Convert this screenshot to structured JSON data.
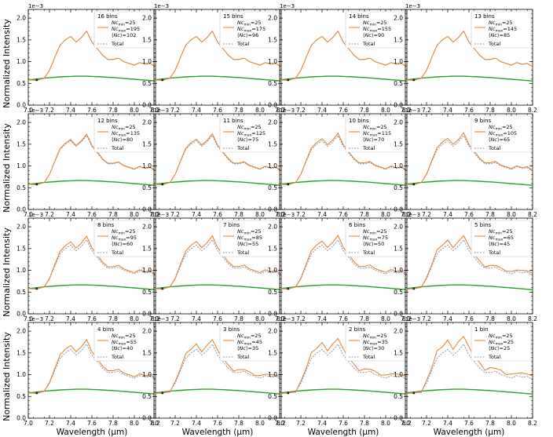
{
  "figure": {
    "ylabel": "Normalized Intensity",
    "xlabel": "Wavelength (μm)",
    "offset_label": "1e−3",
    "x_ticks": [
      "7.0",
      "7.2",
      "7.4",
      "7.6",
      "7.8",
      "8.0",
      "8.2"
    ],
    "y_ticks": [
      "0.0",
      "0.5",
      "1.0",
      "1.5",
      "2.0"
    ],
    "legend_total": "Total",
    "colors": {
      "orange": "#e08a3c",
      "total": "#7a7a9a",
      "green": "#2ca02c"
    }
  },
  "chart_data": [
    {
      "type": "line",
      "bins": "16 bins",
      "nc_min": "25",
      "nc_max": "195",
      "nc_mean": "102",
      "xlim": [
        7.0,
        8.2
      ],
      "ylim": [
        0,
        2.2
      ],
      "scale": "1e-3",
      "amplitude": 1.0
    },
    {
      "type": "line",
      "bins": "15 bins",
      "nc_min": "25",
      "nc_max": "175",
      "nc_mean": "96",
      "xlim": [
        7.0,
        8.2
      ],
      "ylim": [
        0,
        2.2
      ],
      "scale": "1e-3",
      "amplitude": 1.0
    },
    {
      "type": "line",
      "bins": "14 bins",
      "nc_min": "25",
      "nc_max": "155",
      "nc_mean": "90",
      "xlim": [
        7.0,
        8.2
      ],
      "ylim": [
        0,
        2.2
      ],
      "scale": "1e-3",
      "amplitude": 1.0
    },
    {
      "type": "line",
      "bins": "13 bins",
      "nc_min": "25",
      "nc_max": "145",
      "nc_mean": "85",
      "xlim": [
        7.0,
        8.2
      ],
      "ylim": [
        0,
        2.2
      ],
      "scale": "1e-3",
      "amplitude": 1.0
    },
    {
      "type": "line",
      "bins": "12 bins",
      "nc_min": "25",
      "nc_max": "135",
      "nc_mean": "80",
      "xlim": [
        7.0,
        8.2
      ],
      "ylim": [
        0,
        2.2
      ],
      "scale": "1e-3",
      "amplitude": 1.03
    },
    {
      "type": "line",
      "bins": "11 bins",
      "nc_min": "25",
      "nc_max": "125",
      "nc_mean": "75",
      "xlim": [
        7.0,
        8.2
      ],
      "ylim": [
        0,
        2.2
      ],
      "scale": "1e-3",
      "amplitude": 1.04
    },
    {
      "type": "line",
      "bins": "10 bins",
      "nc_min": "25",
      "nc_max": "115",
      "nc_mean": "70",
      "xlim": [
        7.0,
        8.2
      ],
      "ylim": [
        0,
        2.2
      ],
      "scale": "1e-3",
      "amplitude": 1.05
    },
    {
      "type": "line",
      "bins": "9 bins",
      "nc_min": "25",
      "nc_max": "105",
      "nc_mean": "65",
      "xlim": [
        7.0,
        8.2
      ],
      "ylim": [
        0,
        2.2
      ],
      "scale": "1e-3",
      "amplitude": 1.06
    },
    {
      "type": "line",
      "bins": "8 bins",
      "nc_min": "25",
      "nc_max": "95",
      "nc_mean": "60",
      "xlim": [
        7.0,
        8.2
      ],
      "ylim": [
        0,
        2.2
      ],
      "scale": "1e-3",
      "amplitude": 1.08
    },
    {
      "type": "line",
      "bins": "7 bins",
      "nc_min": "25",
      "nc_max": "85",
      "nc_mean": "55",
      "xlim": [
        7.0,
        8.2
      ],
      "ylim": [
        0,
        2.2
      ],
      "scale": "1e-3",
      "amplitude": 1.09
    },
    {
      "type": "line",
      "bins": "6 bins",
      "nc_min": "25",
      "nc_max": "75",
      "nc_mean": "50",
      "xlim": [
        7.0,
        8.2
      ],
      "ylim": [
        0,
        2.2
      ],
      "scale": "1e-3",
      "amplitude": 1.1
    },
    {
      "type": "line",
      "bins": "5 bins",
      "nc_min": "25",
      "nc_max": "65",
      "nc_mean": "45",
      "xlim": [
        7.0,
        8.2
      ],
      "ylim": [
        0,
        2.2
      ],
      "scale": "1e-3",
      "amplitude": 1.11
    },
    {
      "type": "line",
      "bins": "4 bins",
      "nc_min": "25",
      "nc_max": "55",
      "nc_mean": "40",
      "xlim": [
        7.0,
        8.2
      ],
      "ylim": [
        0,
        2.2
      ],
      "scale": "1e-3",
      "amplitude": 1.1
    },
    {
      "type": "line",
      "bins": "3 bins",
      "nc_min": "25",
      "nc_max": "45",
      "nc_mean": "35",
      "xlim": [
        7.0,
        8.2
      ],
      "ylim": [
        0,
        2.2
      ],
      "scale": "1e-3",
      "amplitude": 1.12
    },
    {
      "type": "line",
      "bins": "2 bins",
      "nc_min": "25",
      "nc_max": "35",
      "nc_mean": "30",
      "xlim": [
        7.0,
        8.2
      ],
      "ylim": [
        0,
        2.2
      ],
      "scale": "1e-3",
      "amplitude": 1.15
    },
    {
      "type": "line",
      "bins": "1 bin",
      "nc_min": "25",
      "nc_max": "25",
      "nc_mean": "25",
      "xlim": [
        7.0,
        8.2
      ],
      "ylim": [
        0,
        2.2
      ],
      "scale": "1e-3",
      "amplitude": 1.2
    }
  ],
  "series_shapes": {
    "wavelength": [
      7.0,
      7.08,
      7.15,
      7.2,
      7.25,
      7.3,
      7.35,
      7.4,
      7.45,
      7.5,
      7.55,
      7.6,
      7.65,
      7.7,
      7.75,
      7.8,
      7.85,
      7.9,
      7.95,
      8.0,
      8.05,
      8.1,
      8.15,
      8.2
    ],
    "total": [
      0.58,
      0.57,
      0.62,
      0.8,
      1.1,
      1.38,
      1.5,
      1.58,
      1.45,
      1.55,
      1.7,
      1.45,
      1.3,
      1.15,
      1.05,
      1.05,
      1.08,
      1.0,
      0.96,
      0.92,
      0.98,
      0.94,
      0.96,
      0.88
    ],
    "continuum": [
      0.58,
      0.6,
      0.62,
      0.63,
      0.64,
      0.65,
      0.655,
      0.66,
      0.665,
      0.665,
      0.665,
      0.66,
      0.655,
      0.65,
      0.64,
      0.635,
      0.625,
      0.615,
      0.605,
      0.595,
      0.585,
      0.575,
      0.565,
      0.555
    ]
  }
}
